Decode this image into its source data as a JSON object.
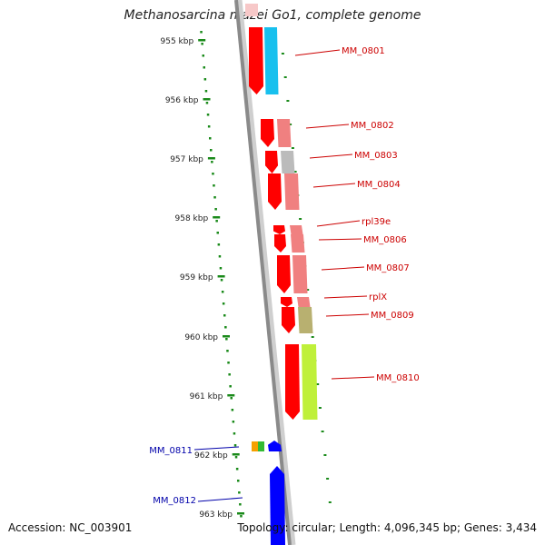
{
  "title": "Methanosarcina mazei Go1, complete genome",
  "accession": "Accession: NC_003901",
  "summary": "Topology: circular; Length: 4,096,345 bp; Genes: 3,434",
  "colors": {
    "forward_gene": "#ff0000",
    "reverse_gene": "#0000ff",
    "forward_label": "#cc0000",
    "reverse_label": "#0000aa",
    "backbone": "#8a8a8a",
    "ruler": "#1a8a1a"
  },
  "ruler_ticks": [
    "955 kbp",
    "956 kbp",
    "957 kbp",
    "958 kbp",
    "959 kbp",
    "960 kbp",
    "961 kbp",
    "962 kbp",
    "963 kbp"
  ],
  "genes": [
    {
      "name": "MM_0801",
      "strand": "+",
      "track_color": "#18c0ee"
    },
    {
      "name": "MM_0802",
      "strand": "+",
      "track_color": "#f08080"
    },
    {
      "name": "MM_0803",
      "strand": "+",
      "track_color": "#bbbbbb"
    },
    {
      "name": "MM_0804",
      "strand": "+",
      "track_color": "#f08080"
    },
    {
      "name": "rpl39e",
      "strand": "+",
      "track_color": "#f08080"
    },
    {
      "name": "MM_0806",
      "strand": "+",
      "track_color": "#f08080"
    },
    {
      "name": "MM_0807",
      "strand": "+",
      "track_color": "#f08080"
    },
    {
      "name": "rplX",
      "strand": "+",
      "track_color": "#f08080"
    },
    {
      "name": "MM_0809",
      "strand": "+",
      "track_color": "#b8b070"
    },
    {
      "name": "MM_0810",
      "strand": "+",
      "track_color": "#bff03a"
    },
    {
      "name": "MM_0811",
      "strand": "-",
      "track_color": "#f5a000"
    },
    {
      "name": "MM_0812",
      "strand": "-",
      "track_color": "#0000ff"
    }
  ]
}
